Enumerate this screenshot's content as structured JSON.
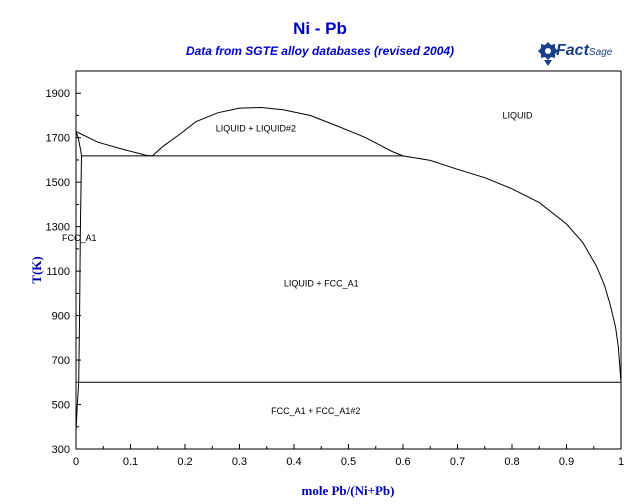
{
  "title": "Ni - Pb",
  "subtitle": "Data from SGTE alloy databases (revised 2004)",
  "logo": {
    "brand": "Fact",
    "suffix": "Sage",
    "color": "#1a3f8a"
  },
  "chart_data": {
    "type": "line",
    "title": "Ni - Pb",
    "subtitle": "Data from SGTE alloy databases (revised 2004)",
    "xlabel": "mole Pb/(Ni+Pb)",
    "ylabel": "T(K)",
    "xlim": [
      0,
      1
    ],
    "ylim": [
      300,
      2000
    ],
    "x_ticks": [
      0,
      0.1,
      0.2,
      0.3,
      0.4,
      0.5,
      0.6,
      0.7,
      0.8,
      0.9,
      1
    ],
    "x_tick_labels": [
      "0",
      "0.1",
      "0.2",
      "0.3",
      "0.4",
      "0.5",
      "0.6",
      "0.7",
      "0.8",
      "0.9",
      "1"
    ],
    "y_ticks": [
      300,
      500,
      700,
      900,
      1100,
      1300,
      1500,
      1700,
      1900
    ],
    "y_tick_labels": [
      "300",
      "500",
      "700",
      "900",
      "1100",
      "1300",
      "1500",
      "1700",
      "1900"
    ],
    "grid": false,
    "line_color": "#000000",
    "curves": [
      {
        "points": [
          [
            0,
            1728
          ],
          [
            0.04,
            1680
          ],
          [
            0.09,
            1645
          ],
          [
            0.13,
            1620
          ],
          [
            0.14,
            1618
          ]
        ]
      },
      {
        "points": [
          [
            0.14,
            1618
          ],
          [
            0.16,
            1662
          ],
          [
            0.19,
            1715
          ],
          [
            0.22,
            1772
          ],
          [
            0.26,
            1812
          ],
          [
            0.3,
            1833
          ],
          [
            0.34,
            1836
          ],
          [
            0.38,
            1826
          ],
          [
            0.43,
            1800
          ],
          [
            0.48,
            1752
          ],
          [
            0.53,
            1702
          ],
          [
            0.58,
            1638
          ],
          [
            0.6,
            1618
          ]
        ]
      },
      {
        "points": [
          [
            0.6,
            1618
          ],
          [
            0.65,
            1598
          ],
          [
            0.7,
            1558
          ],
          [
            0.75,
            1520
          ],
          [
            0.8,
            1470
          ],
          [
            0.85,
            1408
          ],
          [
            0.9,
            1312
          ],
          [
            0.93,
            1228
          ],
          [
            0.955,
            1122
          ],
          [
            0.97,
            1035
          ],
          [
            0.98,
            950
          ],
          [
            0.99,
            850
          ],
          [
            0.995,
            760
          ],
          [
            1,
            600
          ]
        ]
      },
      {
        "points": [
          [
            0,
            1728
          ],
          [
            0.004,
            1700
          ],
          [
            0.008,
            1650
          ],
          [
            0.01,
            1618
          ]
        ]
      },
      {
        "points": [
          [
            0.01,
            1618
          ],
          [
            0.008,
            1300
          ],
          [
            0.007,
            1000
          ],
          [
            0.006,
            800
          ],
          [
            0.005,
            600
          ]
        ]
      },
      {
        "points": [
          [
            0,
            1728
          ],
          [
            0,
            300
          ]
        ]
      },
      {
        "points": [
          [
            0.01,
            1618
          ],
          [
            0.6,
            1618
          ]
        ]
      },
      {
        "points": [
          [
            0.005,
            600
          ],
          [
            1,
            600
          ]
        ]
      },
      {
        "points": [
          [
            0.005,
            600
          ],
          [
            0.002,
            480
          ],
          [
            0,
            380
          ]
        ]
      }
    ],
    "regions": [
      {
        "label": "LIQUID",
        "x": 0.81,
        "y": 1800
      },
      {
        "label": "LIQUID + LIQUID#2",
        "x": 0.33,
        "y": 1742
      },
      {
        "label": "FCC_A1",
        "x": 0.003,
        "y": 1250
      },
      {
        "label": "LIQUID + FCC_A1",
        "x": 0.45,
        "y": 1045
      },
      {
        "label": "FCC_A1 + FCC_A1#2",
        "x": 0.44,
        "y": 470
      }
    ]
  }
}
